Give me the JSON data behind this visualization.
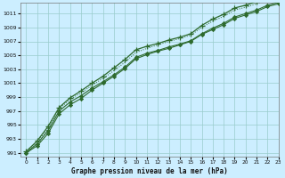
{
  "xlabel": "Graphe pression niveau de la mer (hPa)",
  "background_color": "#cceeff",
  "grid_color": "#99cccc",
  "line_color": "#2d6a2d",
  "ylim": [
    990.5,
    1012.5
  ],
  "xlim": [
    -0.5,
    23
  ],
  "yticks": [
    991,
    993,
    995,
    997,
    999,
    1001,
    1003,
    1005,
    1007,
    1009,
    1011
  ],
  "xticks": [
    0,
    1,
    2,
    3,
    4,
    5,
    6,
    7,
    8,
    9,
    10,
    11,
    12,
    13,
    14,
    15,
    16,
    17,
    18,
    19,
    20,
    21,
    22,
    23
  ],
  "line1_main": [
    991.0,
    992.3,
    994.2,
    997.0,
    998.3,
    999.2,
    1000.3,
    1001.2,
    1002.2,
    1003.3,
    1004.7,
    1005.3,
    1005.7,
    1006.2,
    1006.6,
    1007.1,
    1008.1,
    1008.9,
    1009.6,
    1010.5,
    1011.0,
    1011.5,
    1012.2,
    1012.6
  ],
  "line2_upper": [
    991.2,
    992.7,
    994.8,
    997.5,
    998.9,
    999.9,
    1001.0,
    1002.0,
    1003.2,
    1004.4,
    1005.8,
    1006.3,
    1006.7,
    1007.2,
    1007.6,
    1008.1,
    1009.3,
    1010.2,
    1010.9,
    1011.8,
    1012.2,
    1012.7,
    1013.3,
    1013.6
  ],
  "line3_lower": [
    991.0,
    992.0,
    993.8,
    996.6,
    997.9,
    998.8,
    1000.0,
    1001.0,
    1002.0,
    1003.1,
    1004.5,
    1005.1,
    1005.6,
    1006.0,
    1006.5,
    1007.0,
    1008.0,
    1008.7,
    1009.4,
    1010.3,
    1010.8,
    1011.3,
    1012.0,
    1012.4
  ],
  "line4_dotted": [
    991.0,
    992.5,
    994.5,
    997.3,
    998.7,
    999.6,
    1000.7,
    1001.7,
    1002.8,
    1004.0,
    1005.4,
    1006.0,
    1006.5,
    1007.0,
    1007.4,
    1007.9,
    1009.0,
    1009.9,
    1010.6,
    1011.5,
    1011.9,
    1012.4,
    1013.0,
    1013.4
  ]
}
